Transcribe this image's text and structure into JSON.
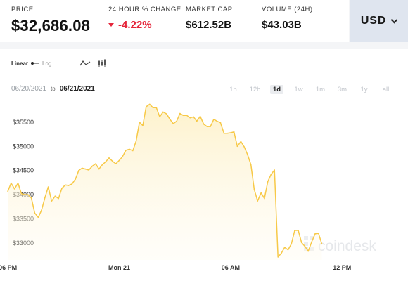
{
  "stats": {
    "price": {
      "label": "PRICE",
      "value": "$32,686.08"
    },
    "change": {
      "label": "24 HOUR % CHANGE",
      "value": "-4.22%",
      "direction": "down"
    },
    "market_cap": {
      "label": "MARKET CAP",
      "value": "$612.52B"
    },
    "volume": {
      "label": "VOLUME (24H)",
      "value": "$43.03B"
    }
  },
  "currency": {
    "label": "USD",
    "icon": "chevron-down-icon"
  },
  "toolbar": {
    "linear": "Linear",
    "log": "Log",
    "chart_types": [
      "line-chart-icon",
      "candlestick-icon"
    ]
  },
  "daterange": {
    "from": "06/20/2021",
    "sep": "to",
    "to": "06/21/2021"
  },
  "ranges": [
    {
      "label": "1h",
      "active": false
    },
    {
      "label": "12h",
      "active": false
    },
    {
      "label": "1d",
      "active": true
    },
    {
      "label": "1w",
      "active": false
    },
    {
      "label": "1m",
      "active": false
    },
    {
      "label": "3m",
      "active": false
    },
    {
      "label": "1y",
      "active": false
    },
    {
      "label": "all",
      "active": false
    }
  ],
  "watermark": "coindesk",
  "colors": {
    "line": "#f7c948",
    "fill_top": "#fdf1c9",
    "negative": "#e5263b",
    "currency_bg": "#dfe5ef"
  },
  "chart_data": {
    "type": "area",
    "title": "",
    "xlabel": "",
    "ylabel": "",
    "x_ticks": [
      {
        "label": "06 PM",
        "hour": 0
      },
      {
        "label": "Mon 21",
        "hour": 6
      },
      {
        "label": "06 AM",
        "hour": 12
      },
      {
        "label": "12 PM",
        "hour": 18
      }
    ],
    "y_ticks": [
      {
        "label": "$33000",
        "value": 33000
      },
      {
        "label": "$33500",
        "value": 33500
      },
      {
        "label": "$34000",
        "value": 34000
      },
      {
        "label": "$34500",
        "value": 34500
      },
      {
        "label": "$35000",
        "value": 35000
      },
      {
        "label": "$35500",
        "value": 35500
      }
    ],
    "xlim": [
      -0.42,
      21.55
    ],
    "ylim": [
      32650,
      35920
    ],
    "x_unit": "hours after 06 PM, Jun 20",
    "series": [
      {
        "values": [
          [
            0.0,
            34070
          ],
          [
            0.18,
            34240
          ],
          [
            0.36,
            34120
          ],
          [
            0.55,
            34240
          ],
          [
            0.73,
            34020
          ],
          [
            0.91,
            34000
          ],
          [
            1.09,
            34000
          ],
          [
            1.27,
            33930
          ],
          [
            1.45,
            33620
          ],
          [
            1.64,
            33530
          ],
          [
            1.82,
            33680
          ],
          [
            2.0,
            33940
          ],
          [
            2.18,
            34160
          ],
          [
            2.36,
            33870
          ],
          [
            2.55,
            33970
          ],
          [
            2.73,
            33920
          ],
          [
            2.91,
            34130
          ],
          [
            3.09,
            34200
          ],
          [
            3.27,
            34190
          ],
          [
            3.45,
            34220
          ],
          [
            3.64,
            34320
          ],
          [
            3.82,
            34500
          ],
          [
            4.0,
            34550
          ],
          [
            4.18,
            34530
          ],
          [
            4.36,
            34510
          ],
          [
            4.55,
            34590
          ],
          [
            4.73,
            34640
          ],
          [
            4.91,
            34530
          ],
          [
            5.09,
            34620
          ],
          [
            5.27,
            34680
          ],
          [
            5.45,
            34760
          ],
          [
            5.64,
            34690
          ],
          [
            5.82,
            34640
          ],
          [
            6.0,
            34710
          ],
          [
            6.18,
            34790
          ],
          [
            6.36,
            34920
          ],
          [
            6.55,
            34940
          ],
          [
            6.73,
            34910
          ],
          [
            6.91,
            35110
          ],
          [
            7.09,
            35500
          ],
          [
            7.27,
            35430
          ],
          [
            7.45,
            35820
          ],
          [
            7.64,
            35870
          ],
          [
            7.82,
            35800
          ],
          [
            8.0,
            35800
          ],
          [
            8.18,
            35610
          ],
          [
            8.36,
            35710
          ],
          [
            8.55,
            35670
          ],
          [
            8.73,
            35560
          ],
          [
            8.91,
            35470
          ],
          [
            9.09,
            35520
          ],
          [
            9.27,
            35680
          ],
          [
            9.45,
            35640
          ],
          [
            9.64,
            35640
          ],
          [
            9.82,
            35590
          ],
          [
            10.0,
            35610
          ],
          [
            10.18,
            35520
          ],
          [
            10.36,
            35620
          ],
          [
            10.55,
            35460
          ],
          [
            10.73,
            35410
          ],
          [
            10.91,
            35410
          ],
          [
            11.09,
            35560
          ],
          [
            11.27,
            35520
          ],
          [
            11.45,
            35490
          ],
          [
            11.64,
            35270
          ],
          [
            11.82,
            35270
          ],
          [
            12.0,
            35280
          ],
          [
            12.18,
            35300
          ],
          [
            12.36,
            35000
          ],
          [
            12.55,
            35100
          ],
          [
            12.73,
            34990
          ],
          [
            12.91,
            34830
          ],
          [
            13.09,
            34620
          ],
          [
            13.27,
            34110
          ],
          [
            13.45,
            33870
          ],
          [
            13.64,
            34040
          ],
          [
            13.82,
            33920
          ],
          [
            14.0,
            34270
          ],
          [
            14.18,
            34420
          ],
          [
            14.36,
            34510
          ],
          [
            14.55,
            32710
          ],
          [
            14.73,
            32790
          ],
          [
            14.91,
            32910
          ],
          [
            15.09,
            32860
          ],
          [
            15.27,
            32980
          ],
          [
            15.45,
            33260
          ],
          [
            15.64,
            33260
          ],
          [
            15.82,
            33010
          ],
          [
            16.0,
            32930
          ],
          [
            16.18,
            32830
          ],
          [
            16.36,
            33020
          ],
          [
            16.55,
            33190
          ],
          [
            16.73,
            33200
          ],
          [
            16.91,
            32980
          ]
        ]
      }
    ]
  }
}
